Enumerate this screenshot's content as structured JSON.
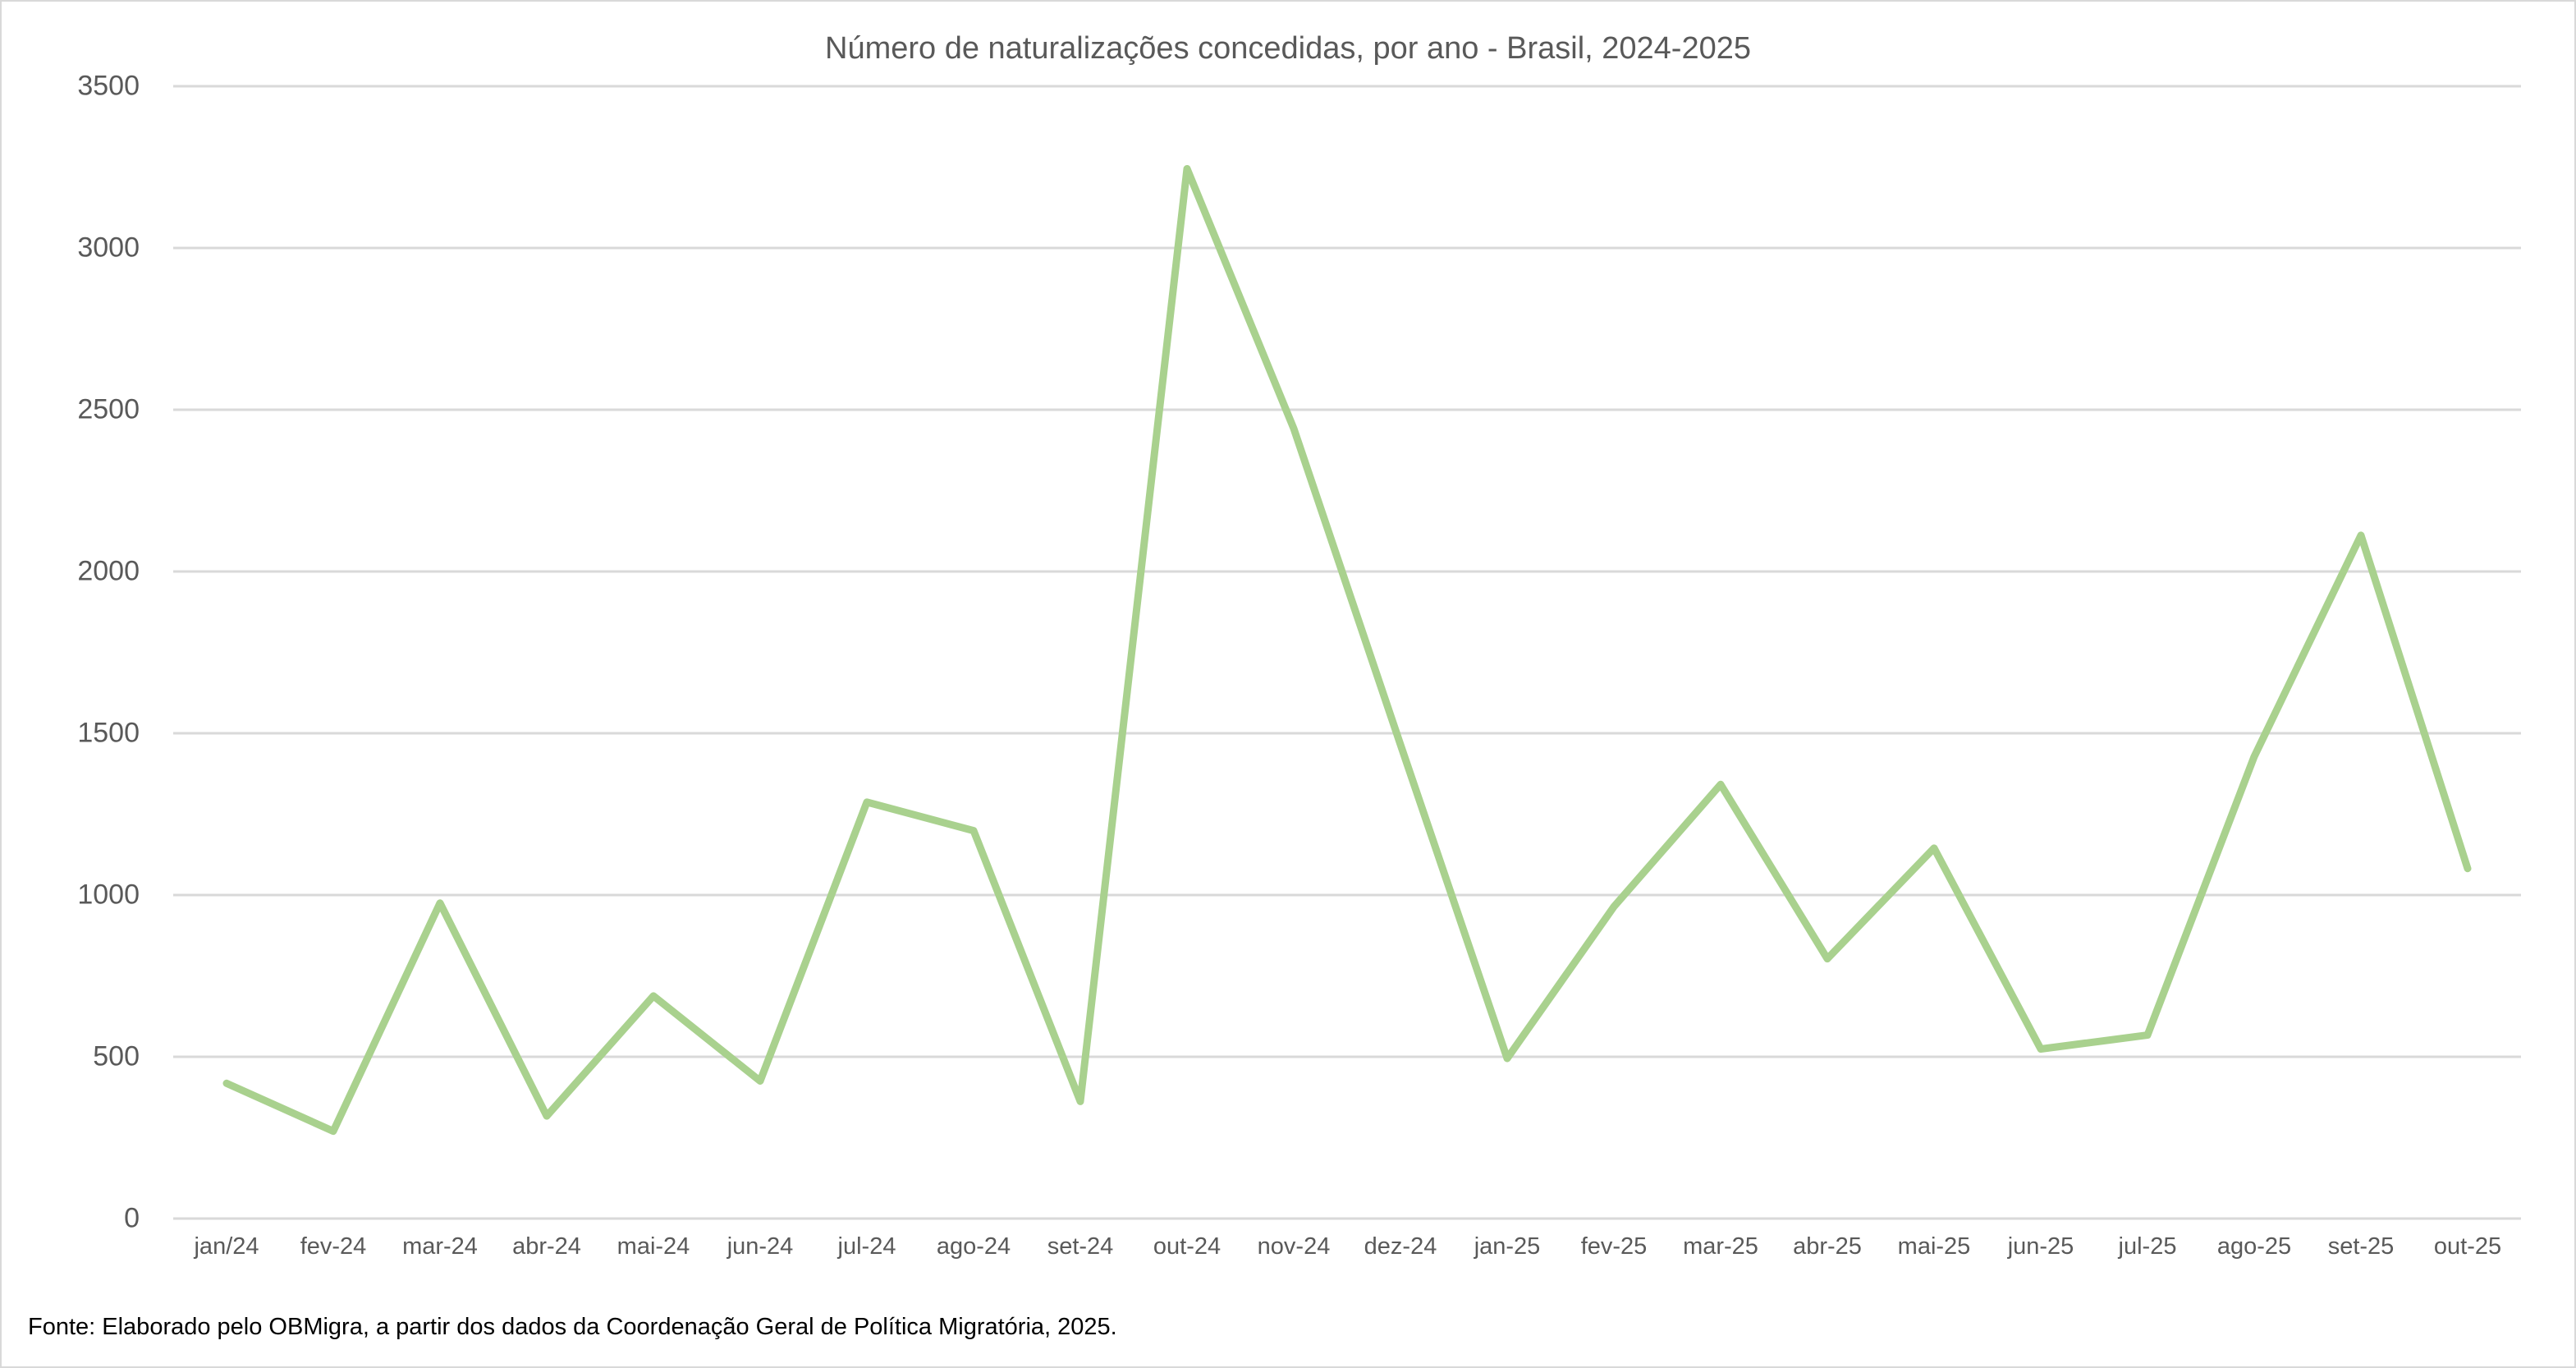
{
  "chart_data": {
    "type": "line",
    "title": "Número de naturalizações concedidas, por ano - Brasil, 2024-2025",
    "xlabel": "",
    "ylabel": "",
    "ylim": [
      0,
      3500
    ],
    "yticks": [
      0,
      500,
      1000,
      1500,
      2000,
      2500,
      3000,
      3500
    ],
    "grid": true,
    "legend": "none",
    "categories": [
      "jan/24",
      "fev-24",
      "mar-24",
      "abr-24",
      "mai-24",
      "jun-24",
      "jul-24",
      "ago-24",
      "set-24",
      "out-24",
      "nov-24",
      "dez-24",
      "jan-25",
      "fev-25",
      "mar-25",
      "abr-25",
      "mai-25",
      "jun-25",
      "jul-25",
      "ago-25",
      "set-25",
      "out-25"
    ],
    "series": [
      {
        "name": "Naturalizações concedidas",
        "color": "#a9d18e",
        "values": [
          418,
          270,
          975,
          317,
          688,
          425,
          1287,
          1199,
          362,
          3245,
          2442,
          1465,
          495,
          964,
          1342,
          803,
          1145,
          524,
          567,
          1428,
          2112,
          1082
        ]
      }
    ],
    "source": "Fonte: Elaborado pelo OBMigra, a partir dos dados da Coordenação Geral de Política Migratória,  2025."
  },
  "labels": {
    "title": "Número de naturalizações concedidas, por ano - Brasil, 2024-2025",
    "footnote": "Fonte: Elaborado pelo OBMigra, a partir dos dados da Coordenação Geral de Política Migratória,  2025."
  },
  "colors": {
    "line": "#a9d18e",
    "grid": "#d9d9d9",
    "axis_text": "#595959",
    "border": "#d9d9d9"
  }
}
